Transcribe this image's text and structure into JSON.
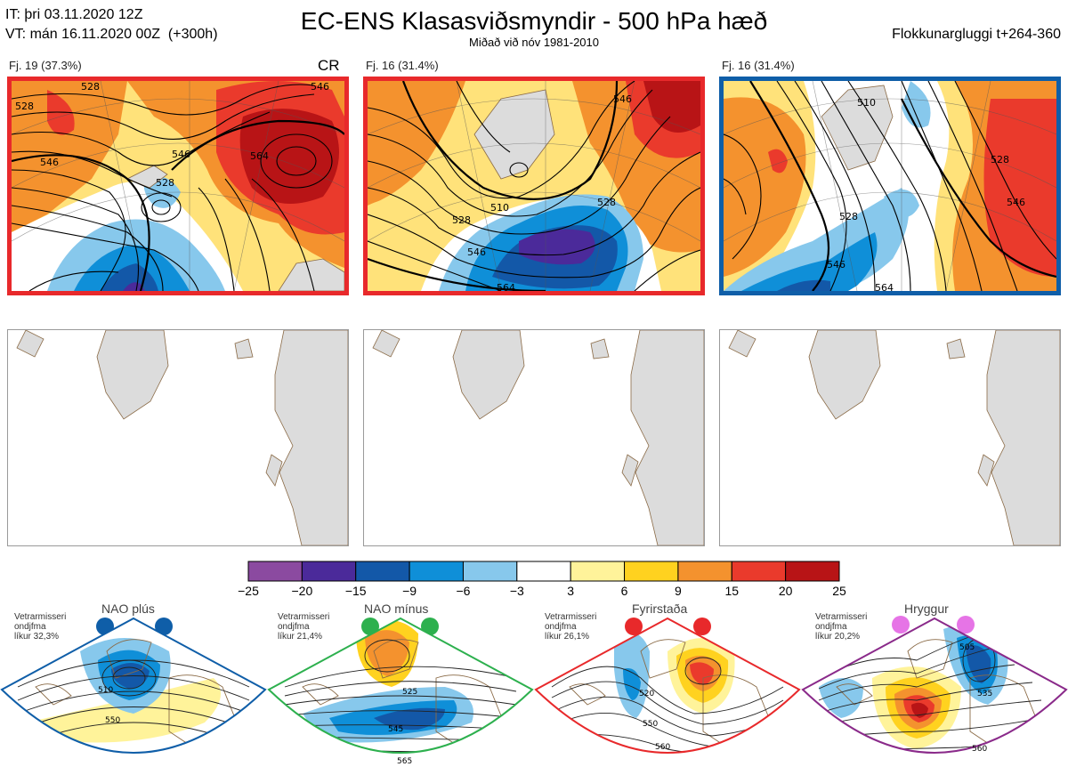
{
  "header": {
    "init_time": "IT: þri 03.11.2020 12Z",
    "valid_time": "VT: mán 16.11.2020 00Z  (+300h)",
    "title": "EC-ENS Klasasviðsmyndir - 500 hPa hæð",
    "subtitle": "Miðað við nóv 1981-2010",
    "window": "Flokkunargluggi t+264-360"
  },
  "colors": {
    "panel1_border": "#e8292b",
    "panel2_border": "#e8292b",
    "panel3_border": "#0f5ea8",
    "land": "#dcdcdc",
    "coast": "#8a6a46"
  },
  "panels": [
    {
      "label": "Fj. 19 (37.3%)",
      "tag": "CR",
      "contour_labels": [
        "528",
        "528",
        "546",
        "546",
        "564",
        "546",
        "528"
      ]
    },
    {
      "label": "Fj. 16 (31.4%)",
      "tag": "",
      "contour_labels": [
        "510",
        "528",
        "546",
        "564",
        "546",
        "528"
      ]
    },
    {
      "label": "Fj. 16 (31.4%)",
      "tag": "",
      "contour_labels": [
        "510",
        "528",
        "546",
        "564",
        "546",
        "528"
      ]
    }
  ],
  "colorbar": {
    "ticks": [
      "−25",
      "−20",
      "−15",
      "−9",
      "−6",
      "−3",
      "3",
      "6",
      "9",
      "15",
      "20",
      "25"
    ],
    "colors": [
      "#8b4aa0",
      "#4b2a9a",
      "#1358a8",
      "#0f8fd8",
      "#87c8ec",
      "#ffffff",
      "#fff39a",
      "#ffd21f",
      "#f4922e",
      "#ea3a2c",
      "#b81416"
    ]
  },
  "regimes": [
    {
      "name": "NAO plús",
      "info": [
        "Vetrarmisseri",
        "ondjfma",
        "líkur 32,3%"
      ],
      "dot_color": "#0f5ea8",
      "border": "#0f5ea8",
      "contours": [
        "510",
        "550"
      ]
    },
    {
      "name": "NAO mínus",
      "info": [
        "Vetrarmisseri",
        "ondjfma",
        "líkur 21,4%"
      ],
      "dot_color": "#2db04e",
      "border": "#2db04e",
      "contours": [
        "525",
        "545",
        "565"
      ]
    },
    {
      "name": "Fyrirstaða",
      "info": [
        "Vetrarmisseri",
        "ondjfma",
        "líkur 26,1%"
      ],
      "dot_color": "#e8292b",
      "border": "#e8292b",
      "contours": [
        "520",
        "550",
        "560"
      ]
    },
    {
      "name": "Hryggur",
      "info": [
        "Vetrarmisseri",
        "ondjfma",
        "líkur 20,2%"
      ],
      "dot_color": "#e674e6",
      "border": "#8a2a8a",
      "contours": [
        "505",
        "535",
        "560"
      ]
    }
  ]
}
